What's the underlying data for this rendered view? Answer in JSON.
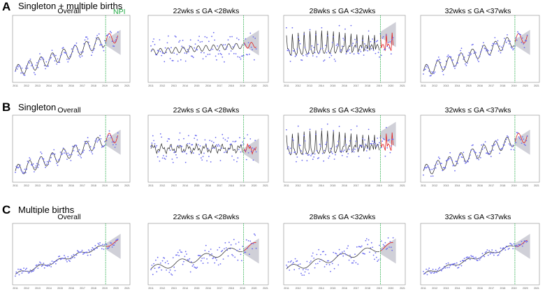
{
  "rows": [
    {
      "letter": "A",
      "title": "Singleton  + multiple  births",
      "panels": [
        {
          "title": "Overall",
          "npi_label": "NPI"
        },
        {
          "title": "22wks ≤ GA <28wks"
        },
        {
          "title": "28wks ≤ GA <32wks"
        },
        {
          "title": "32wks ≤ GA <37wks"
        }
      ]
    },
    {
      "letter": "B",
      "title": "Singleton",
      "panels": [
        {
          "title": "Overall"
        },
        {
          "title": "22wks ≤ GA <28wks"
        },
        {
          "title": "28wks ≤ GA <32wks"
        },
        {
          "title": "32wks ≤ GA <37wks"
        }
      ]
    },
    {
      "letter": "C",
      "title": "Multiple births",
      "panels": [
        {
          "title": "Overall"
        },
        {
          "title": "22wks ≤ GA <28wks"
        },
        {
          "title": "28wks ≤ GA <32wks"
        },
        {
          "title": "32wks ≤ GA <37wks"
        }
      ]
    }
  ],
  "colors": {
    "points": "#6b6bf0",
    "fitted_line": "#222222",
    "prediction_line": "#e02020",
    "prediction_band": "#d0d0d8",
    "npi_line": "#22aa44"
  },
  "chart_data": [
    {
      "type": "line",
      "panel": "A-overall",
      "npi_x": 2020.2,
      "xlim": [
        2011,
        2021
      ],
      "trend": "increasing",
      "seasonal": true
    },
    {
      "type": "line",
      "panel": "A-22-28",
      "npi_x": 2020.2,
      "xlim": [
        2011,
        2021
      ],
      "trend": "slightly increasing",
      "seasonal": false
    },
    {
      "type": "line",
      "panel": "A-28-32",
      "npi_x": 2020.2,
      "xlim": [
        2011,
        2021
      ],
      "trend": "slightly increasing",
      "seasonal": true
    },
    {
      "type": "line",
      "panel": "A-32-37",
      "npi_x": 2020.2,
      "xlim": [
        2011,
        2021
      ],
      "trend": "increasing",
      "seasonal": true
    },
    {
      "type": "line",
      "panel": "B-overall",
      "npi_x": 2020.2,
      "xlim": [
        2011,
        2021
      ],
      "trend": "increasing",
      "seasonal": true
    },
    {
      "type": "line",
      "panel": "B-22-28",
      "npi_x": 2020.2,
      "xlim": [
        2011,
        2021
      ],
      "trend": "flat",
      "seasonal": false
    },
    {
      "type": "line",
      "panel": "B-28-32",
      "npi_x": 2020.2,
      "xlim": [
        2011,
        2021
      ],
      "trend": "flat",
      "seasonal": true
    },
    {
      "type": "line",
      "panel": "B-32-37",
      "npi_x": 2020.2,
      "xlim": [
        2011,
        2021
      ],
      "trend": "increasing",
      "seasonal": true
    },
    {
      "type": "line",
      "panel": "C-overall",
      "npi_x": 2020.2,
      "xlim": [
        2011,
        2021
      ],
      "trend": "increasing",
      "seasonal": false
    },
    {
      "type": "line",
      "panel": "C-22-28",
      "npi_x": 2020.2,
      "xlim": [
        2011,
        2021
      ],
      "trend": "increasing",
      "seasonal": false
    },
    {
      "type": "line",
      "panel": "C-28-32",
      "npi_x": 2020.2,
      "xlim": [
        2011,
        2021
      ],
      "trend": "increasing",
      "seasonal": false
    },
    {
      "type": "line",
      "panel": "C-32-37",
      "npi_x": 2020.2,
      "xlim": [
        2011,
        2021
      ],
      "trend": "increasing",
      "seasonal": false
    }
  ]
}
